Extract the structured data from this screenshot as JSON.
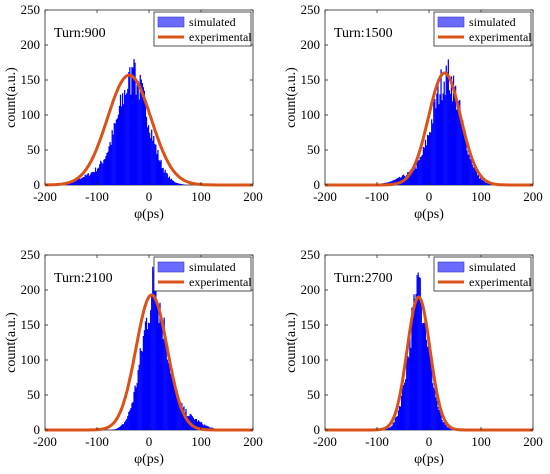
{
  "chart_data": [
    {
      "type": "bar+line",
      "turn_label": "Turn:900",
      "xlabel": "φ(ps)",
      "ylabel": "count(a.u.)",
      "xlim": [
        -200,
        200
      ],
      "ylim": [
        0,
        250
      ],
      "xticks": [
        "-200",
        "-100",
        "0",
        "100",
        "200"
      ],
      "yticks": [
        "0",
        "50",
        "100",
        "150",
        "200",
        "250"
      ],
      "legend": {
        "position": "top-right",
        "entries": [
          "simulated",
          "experimental"
        ]
      },
      "experimental": {
        "peak": 157,
        "center": -38,
        "sigma": 42
      },
      "simulated": {
        "center": -30,
        "sigma": 30,
        "peak": 150,
        "left_tail": true,
        "max_spike": 180
      }
    },
    {
      "type": "bar+line",
      "turn_label": "Turn:1500",
      "xlabel": "φ(ps)",
      "ylabel": "count(a.u.)",
      "xlim": [
        -200,
        200
      ],
      "ylim": [
        0,
        250
      ],
      "xticks": [
        "-200",
        "-100",
        "0",
        "100",
        "200"
      ],
      "yticks": [
        "0",
        "50",
        "100",
        "150",
        "200",
        "250"
      ],
      "legend": {
        "position": "top-right",
        "entries": [
          "simulated",
          "experimental"
        ]
      },
      "experimental": {
        "peak": 160,
        "center": 30,
        "sigma": 31
      },
      "simulated": {
        "center": 35,
        "sigma": 27,
        "peak": 155,
        "left_tail": true,
        "max_spike": 172
      }
    },
    {
      "type": "bar+line",
      "turn_label": "Turn:2100",
      "xlabel": "φ(ps)",
      "ylabel": "count(a.u.)",
      "xlim": [
        -200,
        200
      ],
      "ylim": [
        0,
        250
      ],
      "xticks": [
        "-200",
        "-100",
        "0",
        "100",
        "200"
      ],
      "yticks": [
        "0",
        "50",
        "100",
        "150",
        "200",
        "250"
      ],
      "legend": {
        "position": "top-right",
        "entries": [
          "simulated",
          "experimental"
        ]
      },
      "experimental": {
        "peak": 193,
        "center": 5,
        "sigma": 30
      },
      "simulated": {
        "center": 10,
        "sigma": 24,
        "peak": 190,
        "right_tail": true,
        "max_spike": 240
      }
    },
    {
      "type": "bar+line",
      "turn_label": "Turn:2700",
      "xlabel": "φ(ps)",
      "ylabel": "count(a.u.)",
      "xlim": [
        -200,
        200
      ],
      "ylim": [
        0,
        250
      ],
      "xticks": [
        "-200",
        "-100",
        "0",
        "100",
        "200"
      ],
      "yticks": [
        "0",
        "50",
        "100",
        "150",
        "200",
        "250"
      ],
      "legend": {
        "position": "top-right",
        "entries": [
          "simulated",
          "experimental"
        ]
      },
      "experimental": {
        "peak": 190,
        "center": -20,
        "sigma": 22
      },
      "simulated": {
        "center": -20,
        "sigma": 20,
        "peak": 188,
        "left_tail": false,
        "max_spike": 235
      }
    }
  ],
  "colors": {
    "simulated": "#0000ff",
    "experimental": "#d95319",
    "legend_patch": "#6a6aff"
  }
}
